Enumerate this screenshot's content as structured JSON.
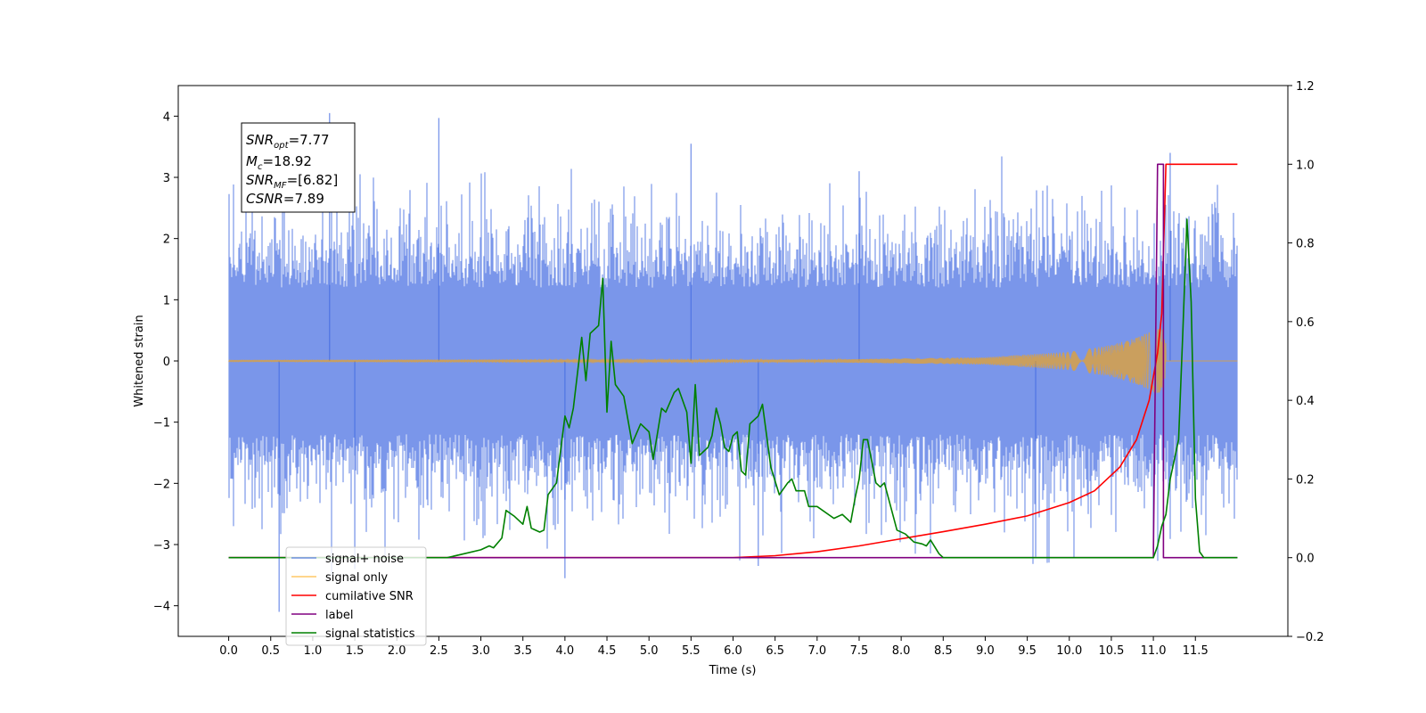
{
  "chart_data": {
    "type": "line",
    "xlabel": "Time (s)",
    "ylabel_left": "Whitened strain",
    "ylabel_right": "",
    "xlim": [
      -0.6,
      12.6
    ],
    "ylim_left": [
      -4.5,
      4.5
    ],
    "ylim_right": [
      -0.2,
      1.2
    ],
    "xticks": [
      "0.0",
      "0.5",
      "1.0",
      "1.5",
      "2.0",
      "2.5",
      "3.0",
      "3.5",
      "4.0",
      "4.5",
      "5.0",
      "5.5",
      "6.0",
      "6.5",
      "7.0",
      "7.5",
      "8.0",
      "8.5",
      "9.0",
      "9.5",
      "10.0",
      "10.5",
      "11.0",
      "11.5"
    ],
    "yticks_left": [
      "4",
      "3",
      "2",
      "1",
      "0",
      "−1",
      "−2",
      "−3",
      "−4"
    ],
    "yticks_right": [
      "1.2",
      "1.0",
      "0.8",
      "0.6",
      "0.4",
      "0.2",
      "0.0",
      "−0.2"
    ],
    "grid": false,
    "legend_placement": "lower-left",
    "annotation": {
      "lines": [
        {
          "base": "SNR",
          "sub": "opt",
          "rest": "=7.77"
        },
        {
          "base": "M",
          "sub": "c",
          "rest": "=18.92"
        },
        {
          "base": "SNR",
          "sub": "MF",
          "rest": "=[6.82]"
        },
        {
          "base": "CSNR",
          "sub": "",
          "rest": "=7.89"
        }
      ]
    },
    "series": [
      {
        "name": "signal+ noise",
        "color": "#4169e1",
        "axis": "left",
        "x_range": [
          0,
          12
        ],
        "y_range": [
          -4.1,
          4.1
        ],
        "noise_peaks": [
          {
            "x": 0.6,
            "y": -4.1
          },
          {
            "x": 1.2,
            "y": 4.05
          },
          {
            "x": 2.5,
            "y": 3.97
          },
          {
            "x": 5.5,
            "y": 3.55
          },
          {
            "x": 1.5,
            "y": -3.4
          },
          {
            "x": 4.0,
            "y": -3.55
          },
          {
            "x": 6.3,
            "y": -3.35
          },
          {
            "x": 9.6,
            "y": -3.2
          },
          {
            "x": 7.5,
            "y": 3.1
          },
          {
            "x": 11.2,
            "y": 3.4
          }
        ]
      },
      {
        "name": "signal only",
        "color": "#ffa500",
        "axis": "left",
        "envelope": [
          {
            "x": 0,
            "y": 0.01
          },
          {
            "x": 7.0,
            "y": 0.02
          },
          {
            "x": 9.0,
            "y": 0.06
          },
          {
            "x": 10.0,
            "y": 0.15
          },
          {
            "x": 10.5,
            "y": 0.26
          },
          {
            "x": 10.8,
            "y": 0.38
          },
          {
            "x": 11.0,
            "y": 0.5
          },
          {
            "x": 11.1,
            "y": 0.55
          },
          {
            "x": 11.2,
            "y": 0
          }
        ]
      },
      {
        "name": "cumilative SNR",
        "color": "#ff0000",
        "axis": "right",
        "points": [
          [
            0,
            0
          ],
          [
            6.0,
            0.0
          ],
          [
            6.5,
            0.005
          ],
          [
            7.0,
            0.015
          ],
          [
            7.5,
            0.03
          ],
          [
            8.0,
            0.048
          ],
          [
            8.5,
            0.066
          ],
          [
            9.0,
            0.085
          ],
          [
            9.5,
            0.106
          ],
          [
            10.0,
            0.14
          ],
          [
            10.3,
            0.17
          ],
          [
            10.6,
            0.23
          ],
          [
            10.8,
            0.3
          ],
          [
            10.95,
            0.4
          ],
          [
            11.05,
            0.52
          ],
          [
            11.1,
            0.62
          ],
          [
            11.15,
            1.0
          ],
          [
            12.0,
            1.0
          ]
        ]
      },
      {
        "name": "label",
        "color": "#800080",
        "axis": "right",
        "points": [
          [
            0,
            0
          ],
          [
            11.0,
            0
          ],
          [
            11.05,
            1.0
          ],
          [
            11.12,
            1.0
          ],
          [
            11.12,
            0
          ],
          [
            12.0,
            0
          ]
        ]
      },
      {
        "name": "signal statistics",
        "color": "#008000",
        "axis": "right",
        "points": [
          [
            0,
            0
          ],
          [
            2.6,
            0
          ],
          [
            2.8,
            0.01
          ],
          [
            3.0,
            0.02
          ],
          [
            3.1,
            0.03
          ],
          [
            3.15,
            0.025
          ],
          [
            3.25,
            0.05
          ],
          [
            3.3,
            0.12
          ],
          [
            3.4,
            0.105
          ],
          [
            3.5,
            0.085
          ],
          [
            3.55,
            0.13
          ],
          [
            3.6,
            0.075
          ],
          [
            3.7,
            0.065
          ],
          [
            3.75,
            0.07
          ],
          [
            3.8,
            0.16
          ],
          [
            3.9,
            0.19
          ],
          [
            4.0,
            0.36
          ],
          [
            4.05,
            0.33
          ],
          [
            4.1,
            0.38
          ],
          [
            4.2,
            0.56
          ],
          [
            4.25,
            0.45
          ],
          [
            4.3,
            0.57
          ],
          [
            4.35,
            0.58
          ],
          [
            4.4,
            0.59
          ],
          [
            4.45,
            0.71
          ],
          [
            4.5,
            0.37
          ],
          [
            4.55,
            0.55
          ],
          [
            4.6,
            0.44
          ],
          [
            4.7,
            0.41
          ],
          [
            4.8,
            0.29
          ],
          [
            4.9,
            0.34
          ],
          [
            5.0,
            0.32
          ],
          [
            5.05,
            0.25
          ],
          [
            5.15,
            0.38
          ],
          [
            5.2,
            0.37
          ],
          [
            5.3,
            0.42
          ],
          [
            5.35,
            0.43
          ],
          [
            5.45,
            0.37
          ],
          [
            5.5,
            0.24
          ],
          [
            5.55,
            0.44
          ],
          [
            5.6,
            0.26
          ],
          [
            5.65,
            0.27
          ],
          [
            5.7,
            0.28
          ],
          [
            5.75,
            0.31
          ],
          [
            5.8,
            0.38
          ],
          [
            5.85,
            0.34
          ],
          [
            5.9,
            0.28
          ],
          [
            5.95,
            0.27
          ],
          [
            6.0,
            0.31
          ],
          [
            6.05,
            0.32
          ],
          [
            6.1,
            0.22
          ],
          [
            6.15,
            0.21
          ],
          [
            6.2,
            0.34
          ],
          [
            6.3,
            0.36
          ],
          [
            6.35,
            0.39
          ],
          [
            6.45,
            0.23
          ],
          [
            6.55,
            0.16
          ],
          [
            6.65,
            0.19
          ],
          [
            6.7,
            0.2
          ],
          [
            6.75,
            0.17
          ],
          [
            6.85,
            0.17
          ],
          [
            6.9,
            0.13
          ],
          [
            7.0,
            0.13
          ],
          [
            7.2,
            0.1
          ],
          [
            7.3,
            0.11
          ],
          [
            7.4,
            0.09
          ],
          [
            7.45,
            0.15
          ],
          [
            7.5,
            0.2
          ],
          [
            7.55,
            0.3
          ],
          [
            7.6,
            0.3
          ],
          [
            7.7,
            0.19
          ],
          [
            7.75,
            0.18
          ],
          [
            7.8,
            0.19
          ],
          [
            7.95,
            0.07
          ],
          [
            8.05,
            0.06
          ],
          [
            8.15,
            0.04
          ],
          [
            8.25,
            0.035
          ],
          [
            8.3,
            0.03
          ],
          [
            8.35,
            0.045
          ],
          [
            8.45,
            0.01
          ],
          [
            8.5,
            0
          ],
          [
            11.0,
            0
          ],
          [
            11.05,
            0.03
          ],
          [
            11.1,
            0.08
          ],
          [
            11.15,
            0.11
          ],
          [
            11.2,
            0.2
          ],
          [
            11.3,
            0.3
          ],
          [
            11.35,
            0.57
          ],
          [
            11.4,
            0.86
          ],
          [
            11.45,
            0.65
          ],
          [
            11.5,
            0.15
          ],
          [
            11.55,
            0.015
          ],
          [
            11.6,
            0
          ],
          [
            12.0,
            0
          ]
        ]
      }
    ]
  }
}
